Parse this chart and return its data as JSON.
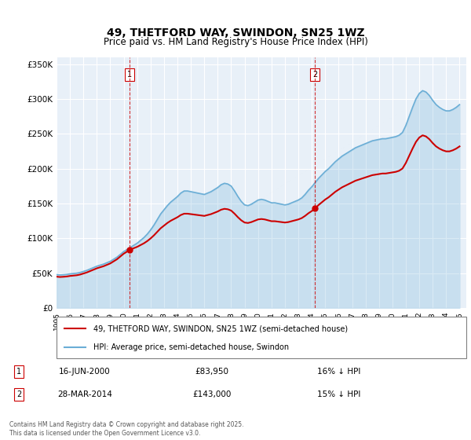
{
  "title1": "49, THETFORD WAY, SWINDON, SN25 1WZ",
  "title2": "Price paid vs. HM Land Registry's House Price Index (HPI)",
  "background_color": "#e8f0f8",
  "plot_bg": "#e8f0f8",
  "years_hpi": [
    1995,
    1995.25,
    1995.5,
    1995.75,
    1996,
    1996.25,
    1996.5,
    1996.75,
    1997,
    1997.25,
    1997.5,
    1997.75,
    1998,
    1998.25,
    1998.5,
    1998.75,
    1999,
    1999.25,
    1999.5,
    1999.75,
    2000,
    2000.25,
    2000.5,
    2000.75,
    2001,
    2001.25,
    2001.5,
    2001.75,
    2002,
    2002.25,
    2002.5,
    2002.75,
    2003,
    2003.25,
    2003.5,
    2003.75,
    2004,
    2004.25,
    2004.5,
    2004.75,
    2005,
    2005.25,
    2005.5,
    2005.75,
    2006,
    2006.25,
    2006.5,
    2006.75,
    2007,
    2007.25,
    2007.5,
    2007.75,
    2008,
    2008.25,
    2008.5,
    2008.75,
    2009,
    2009.25,
    2009.5,
    2009.75,
    2010,
    2010.25,
    2010.5,
    2010.75,
    2011,
    2011.25,
    2011.5,
    2011.75,
    2012,
    2012.25,
    2012.5,
    2012.75,
    2013,
    2013.25,
    2013.5,
    2013.75,
    2014,
    2014.25,
    2014.5,
    2014.75,
    2015,
    2015.25,
    2015.5,
    2015.75,
    2016,
    2016.25,
    2016.5,
    2016.75,
    2017,
    2017.25,
    2017.5,
    2017.75,
    2018,
    2018.25,
    2018.5,
    2018.75,
    2019,
    2019.25,
    2019.5,
    2019.75,
    2020,
    2020.25,
    2020.5,
    2020.75,
    2021,
    2021.25,
    2021.5,
    2021.75,
    2022,
    2022.25,
    2022.5,
    2022.75,
    2023,
    2023.25,
    2023.5,
    2023.75,
    2024,
    2024.25,
    2024.5,
    2024.75,
    2025
  ],
  "hpi_values": [
    48000,
    47500,
    47800,
    48200,
    49000,
    49500,
    50000,
    51000,
    52500,
    54000,
    56000,
    58000,
    60000,
    61500,
    63000,
    65000,
    67000,
    70000,
    73000,
    77000,
    81000,
    84000,
    87000,
    90000,
    93000,
    97000,
    101000,
    106000,
    112000,
    119000,
    127000,
    135000,
    141000,
    147000,
    152000,
    156000,
    160000,
    165000,
    168000,
    168000,
    167000,
    166000,
    165000,
    164000,
    163000,
    165000,
    167000,
    170000,
    173000,
    177000,
    179000,
    178000,
    175000,
    168000,
    160000,
    153000,
    148000,
    147000,
    149000,
    152000,
    155000,
    156000,
    155000,
    153000,
    151000,
    151000,
    150000,
    149000,
    148000,
    149000,
    151000,
    153000,
    155000,
    158000,
    163000,
    169000,
    174000,
    180000,
    186000,
    191000,
    196000,
    200000,
    205000,
    210000,
    214000,
    218000,
    221000,
    224000,
    227000,
    230000,
    232000,
    234000,
    236000,
    238000,
    240000,
    241000,
    242000,
    243000,
    243000,
    244000,
    245000,
    246000,
    248000,
    252000,
    262000,
    275000,
    288000,
    300000,
    308000,
    312000,
    310000,
    305000,
    298000,
    292000,
    288000,
    285000,
    283000,
    283000,
    285000,
    288000,
    292000
  ],
  "sale_years": [
    2000.46,
    2014.23
  ],
  "sale_prices": [
    83950,
    143000
  ],
  "sale_labels": [
    "1",
    "2"
  ],
  "vline_x": [
    2000.46,
    2014.23
  ],
  "legend_line1": "49, THETFORD WAY, SWINDON, SN25 1WZ (semi-detached house)",
  "legend_line2": "HPI: Average price, semi-detached house, Swindon",
  "annotation1": [
    "1",
    "16-JUN-2000",
    "£83,950",
    "16% ↓ HPI"
  ],
  "annotation2": [
    "2",
    "28-MAR-2014",
    "£143,000",
    "15% ↓ HPI"
  ],
  "footer": "Contains HM Land Registry data © Crown copyright and database right 2025.\nThis data is licensed under the Open Government Licence v3.0.",
  "hpi_color": "#6baed6",
  "sale_color": "#cc0000",
  "vline_color": "#cc0000",
  "ylim": [
    0,
    360000
  ],
  "xlim": [
    1995,
    2025.5
  ],
  "yticks": [
    0,
    50000,
    100000,
    150000,
    200000,
    250000,
    300000,
    350000
  ],
  "ytick_labels": [
    "£0",
    "£50K",
    "£100K",
    "£150K",
    "£200K",
    "£250K",
    "£300K",
    "£350K"
  ],
  "xticks": [
    1995,
    1996,
    1997,
    1998,
    1999,
    2000,
    2001,
    2002,
    2003,
    2004,
    2005,
    2006,
    2007,
    2008,
    2009,
    2010,
    2011,
    2012,
    2013,
    2014,
    2015,
    2016,
    2017,
    2018,
    2019,
    2020,
    2021,
    2022,
    2023,
    2024,
    2025
  ]
}
